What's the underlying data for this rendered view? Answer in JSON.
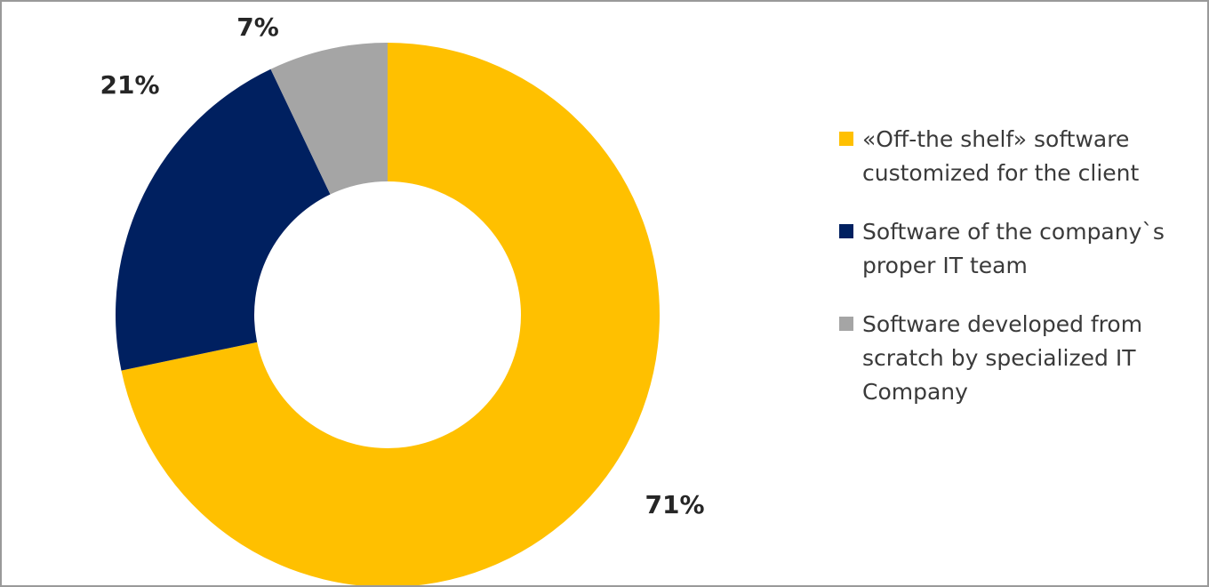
{
  "chart_data": {
    "type": "pie",
    "variant": "donut",
    "categories": [
      "«Off-the shelf» software customized for the client",
      "Software of the company`s proper IT team",
      "Software developed from scratch by specialized IT Company"
    ],
    "values": [
      71,
      21,
      7
    ],
    "data_labels": [
      "71%",
      "21%",
      "7%"
    ],
    "colors": [
      "#FFC000",
      "#002060",
      "#A5A5A5"
    ],
    "legend_position": "right",
    "title": ""
  }
}
